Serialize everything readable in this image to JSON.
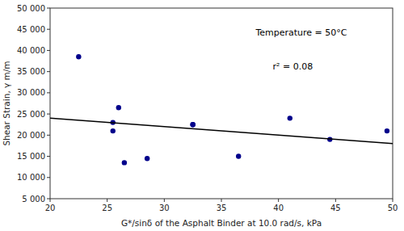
{
  "chart_data": {
    "type": "scatter",
    "xlabel": "G*/sinδ of the Asphalt Binder at 10.0 rad/s, kPa",
    "ylabel": "Shear Strain, γ  m/m",
    "annotations": [
      "Temperature = 50°C",
      "r² = 0.08"
    ],
    "series": [
      {
        "type": "scatter",
        "color": "#00008B",
        "x": [
          22.5,
          25.5,
          25.5,
          26.0,
          26.5,
          28.5,
          32.5,
          32.5,
          36.5,
          41.0,
          44.5,
          49.5
        ],
        "values": [
          38500,
          21000,
          23000,
          26500,
          13500,
          14500,
          22500,
          22500,
          15000,
          24000,
          19000,
          21000
        ]
      },
      {
        "type": "line",
        "color": "#000000",
        "x": [
          20,
          50
        ],
        "values": [
          24000,
          18000
        ]
      }
    ],
    "xlim": [
      20,
      50
    ],
    "ylim": [
      5000,
      50000
    ],
    "xticks": [
      20,
      25,
      30,
      35,
      40,
      45,
      50
    ],
    "yticks": [
      {
        "value": 5000,
        "label": "5 000"
      },
      {
        "value": 10000,
        "label": "10 000"
      },
      {
        "value": 15000,
        "label": "15 000"
      },
      {
        "value": 20000,
        "label": "20 000"
      },
      {
        "value": 25000,
        "label": "25 000"
      },
      {
        "value": 30000,
        "label": "30 000"
      },
      {
        "value": 35000,
        "label": "35 000"
      },
      {
        "value": 40000,
        "label": "40 000"
      },
      {
        "value": 45000,
        "label": "45 000"
      },
      {
        "value": 50000,
        "label": "50 000"
      }
    ],
    "grid": false
  }
}
